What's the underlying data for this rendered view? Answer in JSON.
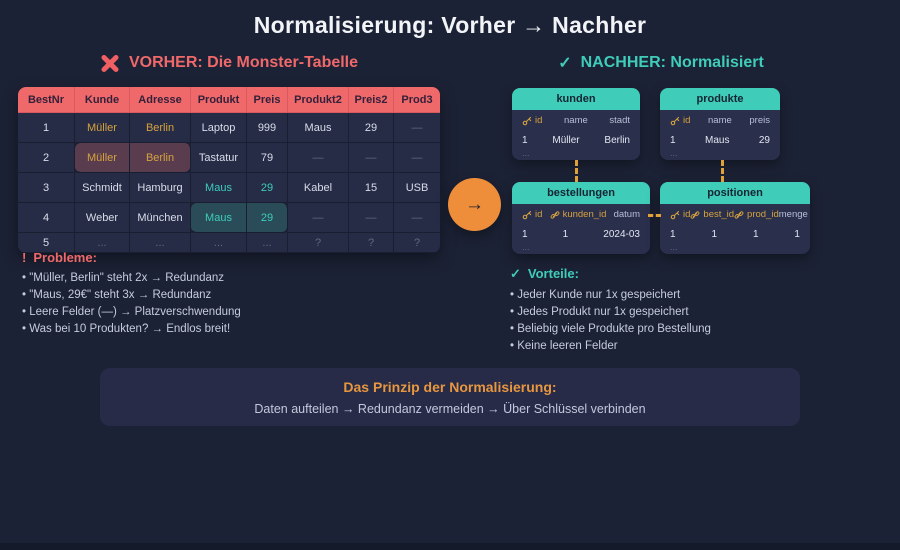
{
  "title": "Normalisierung: Vorher → Nachher",
  "arrow": {
    "glyph": "→"
  },
  "colors": {
    "accent_red": "#f0696a",
    "accent_teal": "#3fccb9",
    "accent_orange": "#ee8e3b",
    "key_gold": "#d6a23e",
    "background": "#1c2235"
  },
  "before": {
    "heading": "VORHER: Die Monster-Tabelle",
    "table": {
      "columns": [
        "BestNr",
        "Kunde",
        "Adresse",
        "Produkt",
        "Preis",
        "Produkt2",
        "Preis2",
        "Prod3"
      ],
      "rows": [
        [
          {
            "t": "1"
          },
          {
            "t": "Müller",
            "em": "gold"
          },
          {
            "t": "Berlin",
            "em": "gold"
          },
          {
            "t": "Laptop"
          },
          {
            "t": "999"
          },
          {
            "t": "Maus"
          },
          {
            "t": "29"
          },
          {
            "t": "—",
            "dim": true
          }
        ],
        [
          {
            "t": "2"
          },
          {
            "t": "Müller",
            "em": "gold",
            "bg": "red"
          },
          {
            "t": "Berlin",
            "em": "gold",
            "bg": "red"
          },
          {
            "t": "Tastatur"
          },
          {
            "t": "79"
          },
          {
            "t": "—",
            "dim": true
          },
          {
            "t": "—",
            "dim": true
          },
          {
            "t": "—",
            "dim": true
          }
        ],
        [
          {
            "t": "3"
          },
          {
            "t": "Schmidt"
          },
          {
            "t": "Hamburg"
          },
          {
            "t": "Maus",
            "em": "teal"
          },
          {
            "t": "29",
            "em": "teal"
          },
          {
            "t": "Kabel"
          },
          {
            "t": "15"
          },
          {
            "t": "USB"
          }
        ],
        [
          {
            "t": "4"
          },
          {
            "t": "Weber"
          },
          {
            "t": "München"
          },
          {
            "t": "Maus",
            "em": "teal",
            "bg": "teal"
          },
          {
            "t": "29",
            "em": "teal",
            "bg": "teal"
          },
          {
            "t": "—",
            "dim": true
          },
          {
            "t": "—",
            "dim": true
          },
          {
            "t": "—",
            "dim": true
          }
        ],
        [
          {
            "t": "5"
          },
          {
            "t": "...",
            "dim": true
          },
          {
            "t": "...",
            "dim": true
          },
          {
            "t": "...",
            "dim": true
          },
          {
            "t": "...",
            "dim": true
          },
          {
            "t": "?",
            "dim": true
          },
          {
            "t": "?",
            "dim": true
          },
          {
            "t": "?",
            "dim": true
          }
        ]
      ]
    },
    "problems": {
      "marker": "!",
      "heading": "Probleme:",
      "items": [
        "\"Müller, Berlin\" steht 2x → Redundanz",
        "\"Maus, 29€\" steht 3x → Redundanz",
        "Leere Felder (—) → Platzverschwendung",
        "Was bei 10 Produkten? → Endlos breit!"
      ]
    }
  },
  "after": {
    "marker": "✓",
    "heading": "NACHHER: Normalisiert",
    "tables": [
      {
        "name": "kunden",
        "columns": [
          {
            "label": "id",
            "icon": "key"
          },
          {
            "label": "name"
          },
          {
            "label": "stadt"
          }
        ],
        "row": [
          "1",
          "Müller",
          "Berlin"
        ],
        "more": "..."
      },
      {
        "name": "produkte",
        "columns": [
          {
            "label": "id",
            "icon": "key"
          },
          {
            "label": "name"
          },
          {
            "label": "preis"
          }
        ],
        "row": [
          "1",
          "Maus",
          "29"
        ],
        "more": "..."
      },
      {
        "name": "bestellungen",
        "columns": [
          {
            "label": "id",
            "icon": "key"
          },
          {
            "label": "kunden_id",
            "icon": "link"
          },
          {
            "label": "datum"
          }
        ],
        "row": [
          "1",
          "1",
          "2024-03"
        ],
        "more": "..."
      },
      {
        "name": "positionen",
        "columns": [
          {
            "label": "id",
            "icon": "key"
          },
          {
            "label": "best_id",
            "icon": "link"
          },
          {
            "label": "prod_id",
            "icon": "link"
          },
          {
            "label": "menge"
          }
        ],
        "row": [
          "1",
          "1",
          "1",
          "1"
        ],
        "more": "..."
      }
    ],
    "benefits": {
      "marker": "✓",
      "heading": "Vorteile:",
      "items": [
        "Jeder Kunde nur 1x gespeichert",
        "Jedes Produkt nur 1x gespeichert",
        "Beliebig viele Produkte pro Bestellung",
        "Keine leeren Felder"
      ]
    }
  },
  "principle": {
    "heading": "Das Prinzip der Normalisierung:",
    "text": "Daten aufteilen → Redundanz vermeiden → Über Schlüssel verbinden"
  }
}
